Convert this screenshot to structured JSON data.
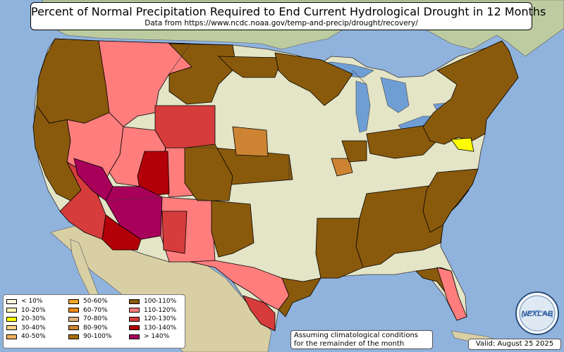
{
  "title": "Percent of Normal Precipitation Required to End Current Hydrological Drought in 12 Months",
  "subtitle": "Data from https://www.ncdc.noaa.gov/temp-and-precip/drought/recovery/",
  "legend": {
    "col1": [
      {
        "label": "< 10%",
        "color": "#fffde0"
      },
      {
        "label": "10-20%",
        "color": "#fff9b0"
      },
      {
        "label": "20-30%",
        "color": "#ffff00"
      },
      {
        "label": "30-40%",
        "color": "#ffd38a"
      },
      {
        "label": "40-50%",
        "color": "#f6b25c"
      }
    ],
    "col2": [
      {
        "label": "50-60%",
        "color": "#f7a623"
      },
      {
        "label": "60-70%",
        "color": "#f08a11"
      },
      {
        "label": "70-80%",
        "color": "#e0b07e"
      },
      {
        "label": "80-90%",
        "color": "#cc8433"
      },
      {
        "label": "90-100%",
        "color": "#a96f08"
      }
    ],
    "col3": [
      {
        "label": "100-110%",
        "color": "#8a5a0c"
      },
      {
        "label": "110-120%",
        "color": "#ff7d7d"
      },
      {
        "label": "120-130%",
        "color": "#d63c3c"
      },
      {
        "label": "130-140%",
        "color": "#b30008"
      },
      {
        "label": "> 140%",
        "color": "#a8005a"
      }
    ]
  },
  "note_line1": "Assuming climatological conditions",
  "note_line2": "for the remainder of the month",
  "valid": "Valid: August 25 2025",
  "logo_text": "NEXLAB",
  "colors": {
    "ocean": "#8fb3dd",
    "land": "#e4e4c6",
    "canada": "#bdcca0",
    "mexico": "#d9cfa5",
    "lakes": "#6f9ed5"
  }
}
